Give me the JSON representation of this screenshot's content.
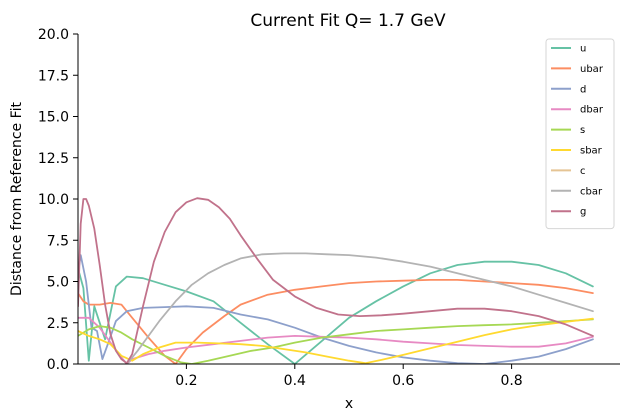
{
  "chart_data": {
    "type": "line",
    "title": "Current Fit Q= 1.7 GeV",
    "xlabel": "x",
    "ylabel": "Distance from Reference Fit",
    "xlim": [
      0.0,
      1.0
    ],
    "ylim": [
      0.0,
      20.0
    ],
    "xticks": [
      0.2,
      0.4,
      0.6,
      0.8
    ],
    "xtick_labels": [
      "0.2",
      "0.4",
      "0.6",
      "0.8"
    ],
    "yticks": [
      0,
      2.5,
      5,
      7.5,
      10,
      12.5,
      15,
      17.5,
      20
    ],
    "ytick_labels": [
      "0.0",
      "2.5",
      "5.0",
      "7.5",
      "10.0",
      "12.5",
      "15.0",
      "17.5",
      "20.0"
    ],
    "grid": false,
    "legend_position": "top-right",
    "series": [
      {
        "name": "u",
        "color": "#66c2a5",
        "x": [
          0.0,
          0.01,
          0.02,
          0.03,
          0.05,
          0.07,
          0.09,
          0.12,
          0.16,
          0.2,
          0.25,
          0.3,
          0.35,
          0.4,
          0.45,
          0.5,
          0.55,
          0.6,
          0.65,
          0.7,
          0.75,
          0.8,
          0.85,
          0.9,
          0.95
        ],
        "y": [
          5.8,
          4.6,
          0.2,
          3.5,
          1.5,
          4.7,
          5.3,
          5.2,
          4.8,
          4.4,
          3.8,
          2.5,
          1.2,
          0.0,
          1.4,
          2.8,
          3.8,
          4.7,
          5.5,
          6.0,
          6.2,
          6.2,
          6.0,
          5.5,
          4.7
        ]
      },
      {
        "name": "ubar",
        "color": "#fc8d62",
        "x": [
          0.0,
          0.01,
          0.02,
          0.04,
          0.06,
          0.08,
          0.1,
          0.13,
          0.16,
          0.18,
          0.2,
          0.23,
          0.27,
          0.3,
          0.35,
          0.4,
          0.45,
          0.5,
          0.55,
          0.6,
          0.65,
          0.7,
          0.75,
          0.8,
          0.85,
          0.9,
          0.95
        ],
        "y": [
          4.3,
          3.8,
          3.6,
          3.6,
          3.7,
          3.6,
          2.8,
          1.6,
          0.5,
          0.0,
          0.9,
          1.9,
          2.9,
          3.6,
          4.2,
          4.5,
          4.7,
          4.9,
          5.0,
          5.05,
          5.1,
          5.1,
          5.0,
          4.9,
          4.8,
          4.6,
          4.3
        ]
      },
      {
        "name": "d",
        "color": "#8da0cb",
        "x": [
          0.0,
          0.005,
          0.015,
          0.025,
          0.035,
          0.045,
          0.055,
          0.07,
          0.09,
          0.12,
          0.16,
          0.2,
          0.25,
          0.3,
          0.35,
          0.4,
          0.45,
          0.5,
          0.55,
          0.6,
          0.65,
          0.7,
          0.75,
          0.8,
          0.85,
          0.9,
          0.95
        ],
        "y": [
          5.5,
          6.6,
          5.0,
          2.2,
          2.0,
          0.3,
          1.2,
          2.6,
          3.2,
          3.4,
          3.45,
          3.5,
          3.4,
          3.0,
          2.7,
          2.2,
          1.6,
          1.1,
          0.7,
          0.4,
          0.2,
          0.05,
          0.0,
          0.2,
          0.45,
          0.9,
          1.5
        ]
      },
      {
        "name": "dbar",
        "color": "#e78ac3",
        "x": [
          0.0,
          0.02,
          0.04,
          0.06,
          0.08,
          0.09,
          0.1,
          0.13,
          0.16,
          0.2,
          0.25,
          0.3,
          0.35,
          0.4,
          0.45,
          0.5,
          0.55,
          0.6,
          0.65,
          0.7,
          0.75,
          0.8,
          0.85,
          0.9,
          0.95
        ],
        "y": [
          2.8,
          2.8,
          2.2,
          1.3,
          0.4,
          0.0,
          0.3,
          0.6,
          0.8,
          1.0,
          1.2,
          1.4,
          1.6,
          1.7,
          1.65,
          1.6,
          1.5,
          1.35,
          1.25,
          1.15,
          1.1,
          1.05,
          1.05,
          1.25,
          1.65
        ]
      },
      {
        "name": "s",
        "color": "#a6d854",
        "x": [
          0.0,
          0.02,
          0.04,
          0.06,
          0.08,
          0.1,
          0.13,
          0.16,
          0.19,
          0.21,
          0.24,
          0.28,
          0.32,
          0.36,
          0.4,
          0.45,
          0.5,
          0.55,
          0.6,
          0.65,
          0.7,
          0.75,
          0.8,
          0.85,
          0.9,
          0.95
        ],
        "y": [
          1.7,
          2.1,
          2.3,
          2.2,
          1.9,
          1.5,
          1.0,
          0.5,
          0.1,
          0.0,
          0.2,
          0.5,
          0.8,
          1.0,
          1.3,
          1.6,
          1.8,
          2.0,
          2.1,
          2.2,
          2.3,
          2.35,
          2.4,
          2.5,
          2.6,
          2.7
        ]
      },
      {
        "name": "sbar",
        "color": "#ffd92f",
        "x": [
          0.0,
          0.02,
          0.04,
          0.06,
          0.08,
          0.1,
          0.12,
          0.15,
          0.18,
          0.22,
          0.26,
          0.3,
          0.34,
          0.38,
          0.42,
          0.46,
          0.5,
          0.53,
          0.56,
          0.6,
          0.65,
          0.7,
          0.75,
          0.8,
          0.85,
          0.9,
          0.95
        ],
        "y": [
          2.0,
          1.7,
          1.5,
          1.2,
          0.5,
          0.2,
          0.6,
          1.0,
          1.3,
          1.3,
          1.25,
          1.2,
          1.1,
          0.9,
          0.7,
          0.45,
          0.2,
          0.05,
          0.25,
          0.55,
          0.95,
          1.35,
          1.75,
          2.1,
          2.35,
          2.55,
          2.75
        ]
      },
      {
        "name": "c",
        "color": "#e5c494",
        "x": [],
        "y": []
      },
      {
        "name": "cbar",
        "color": "#b3b3b3",
        "x": [
          0.09,
          0.11,
          0.13,
          0.15,
          0.18,
          0.21,
          0.24,
          0.27,
          0.3,
          0.34,
          0.38,
          0.42,
          0.46,
          0.5,
          0.55,
          0.6,
          0.65,
          0.7,
          0.75,
          0.8,
          0.85,
          0.9,
          0.95
        ],
        "y": [
          0.0,
          0.8,
          1.7,
          2.6,
          3.8,
          4.8,
          5.5,
          6.0,
          6.4,
          6.65,
          6.7,
          6.7,
          6.65,
          6.6,
          6.45,
          6.2,
          5.9,
          5.5,
          5.1,
          4.7,
          4.2,
          3.7,
          3.2
        ]
      },
      {
        "name": "g",
        "color": "#c1728b",
        "x": [
          0.0,
          0.005,
          0.01,
          0.015,
          0.02,
          0.03,
          0.04,
          0.05,
          0.06,
          0.07,
          0.08,
          0.09,
          0.1,
          0.12,
          0.14,
          0.16,
          0.18,
          0.2,
          0.22,
          0.24,
          0.26,
          0.28,
          0.3,
          0.33,
          0.36,
          0.4,
          0.44,
          0.48,
          0.52,
          0.56,
          0.6,
          0.65,
          0.7,
          0.75,
          0.8,
          0.85,
          0.9,
          0.95
        ],
        "y": [
          3.5,
          8.5,
          10.0,
          10.0,
          9.6,
          8.2,
          6.0,
          3.6,
          1.8,
          0.8,
          0.3,
          0.05,
          0.6,
          3.5,
          6.2,
          8.0,
          9.2,
          9.8,
          10.05,
          9.95,
          9.5,
          8.8,
          7.8,
          6.4,
          5.1,
          4.1,
          3.4,
          3.0,
          2.9,
          2.95,
          3.05,
          3.2,
          3.35,
          3.35,
          3.2,
          2.9,
          2.4,
          1.7
        ]
      }
    ]
  }
}
